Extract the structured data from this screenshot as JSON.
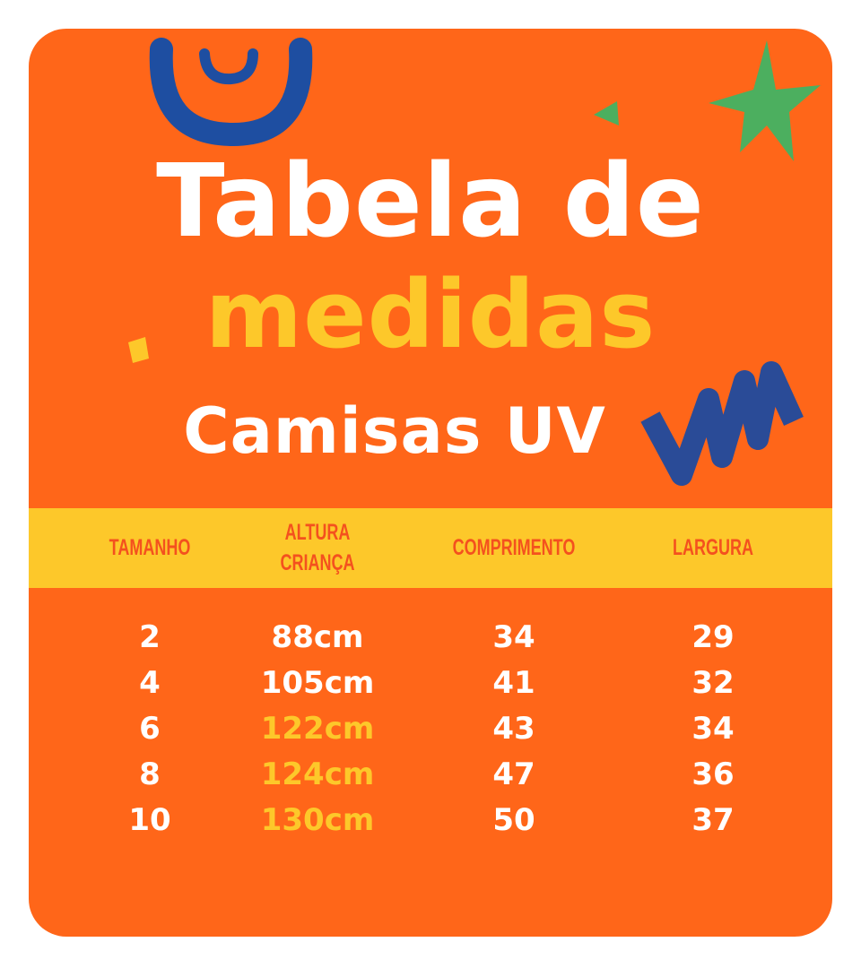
{
  "header": {
    "title_line1": "Tabela de",
    "title_line2": "medidas",
    "subtitle": "Camisas UV"
  },
  "table": {
    "columns": [
      "TAMANHO",
      "ALTURA CRIANÇA",
      "COMPRIMENTO",
      "LARGURA"
    ],
    "rows": [
      [
        "2",
        "88cm",
        "34",
        "29"
      ],
      [
        "4",
        "105cm",
        "41",
        "32"
      ],
      [
        "6",
        "122cm",
        "43",
        "34"
      ],
      [
        "8",
        "124cm",
        "47",
        "36"
      ],
      [
        "10",
        "130cm",
        "50",
        "37"
      ]
    ]
  }
}
